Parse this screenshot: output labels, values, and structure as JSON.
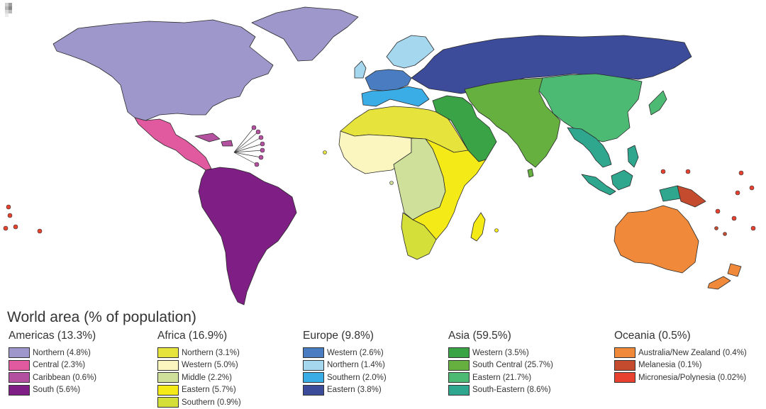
{
  "title": "World area (% of population)",
  "groups": [
    {
      "name": "Americas (13.3%)",
      "items": [
        {
          "label": "Northern (4.8%)",
          "color": "#9e97cb"
        },
        {
          "label": "Central (2.3%)",
          "color": "#e15aa0"
        },
        {
          "label": "Caribbean (0.6%)",
          "color": "#b450a0"
        },
        {
          "label": "South (5.6%)",
          "color": "#7f1f86"
        }
      ]
    },
    {
      "name": "Africa (16.9%)",
      "items": [
        {
          "label": "Northern (3.1%)",
          "color": "#e6e33c"
        },
        {
          "label": "Western (5.0%)",
          "color": "#fbf6c0"
        },
        {
          "label": "Middle (2.2%)",
          "color": "#cfe09a"
        },
        {
          "label": "Eastern (5.7%)",
          "color": "#f3ea18"
        },
        {
          "label": "Southern (0.9%)",
          "color": "#d4df3a"
        }
      ]
    },
    {
      "name": "Europe (9.8%)",
      "items": [
        {
          "label": "Western (2.6%)",
          "color": "#4a7cc2"
        },
        {
          "label": "Northern (1.4%)",
          "color": "#a5d7ef"
        },
        {
          "label": "Southern (2.0%)",
          "color": "#3aace6"
        },
        {
          "label": "Eastern (3.8%)",
          "color": "#3c4b9a"
        }
      ]
    },
    {
      "name": "Asia (59.5%)",
      "items": [
        {
          "label": "Western (3.5%)",
          "color": "#3aa346"
        },
        {
          "label": "South Central (25.7%)",
          "color": "#66b040"
        },
        {
          "label": "Eastern (21.7%)",
          "color": "#4dba74"
        },
        {
          "label": "South-Eastern (8.6%)",
          "color": "#2ea78e"
        }
      ]
    },
    {
      "name": "Oceania (0.5%)",
      "items": [
        {
          "label": "Australia/New Zealand (0.4%)",
          "color": "#f08a3a"
        },
        {
          "label": "Melanesia (0.1%)",
          "color": "#c54b2e"
        },
        {
          "label": "Micronesia/Polynesia (0.02%)",
          "color": "#e8412f"
        }
      ]
    }
  ]
}
